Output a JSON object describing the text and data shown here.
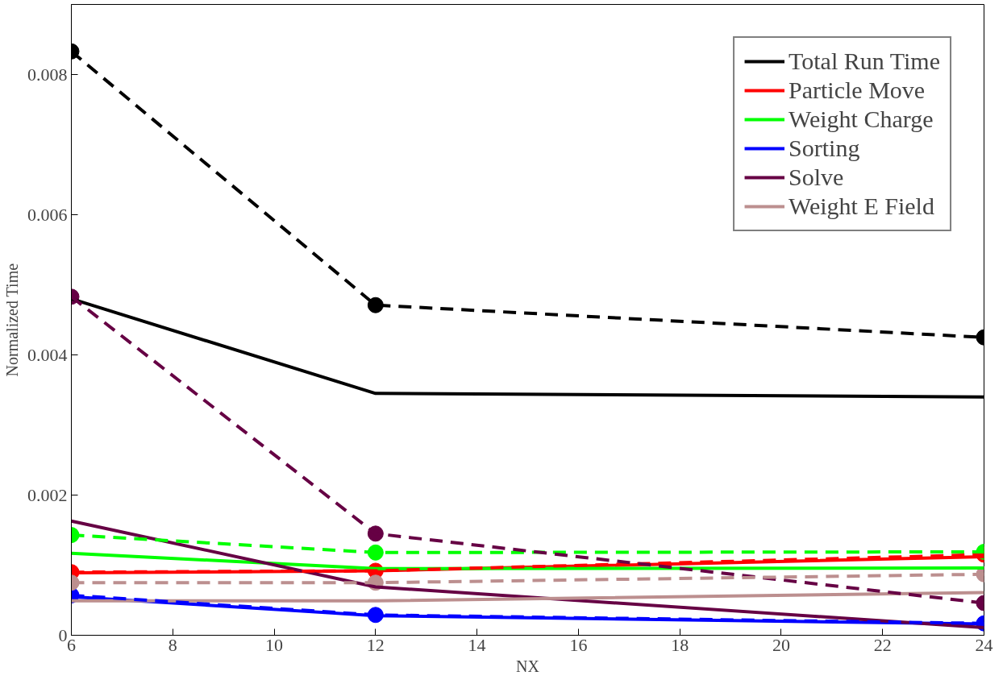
{
  "chart_data": {
    "type": "line",
    "xlabel": "NX",
    "ylabel": "Normalized Time",
    "x": [
      6,
      12,
      24
    ],
    "xlim": [
      6,
      24
    ],
    "xticks": [
      6,
      8,
      10,
      12,
      14,
      16,
      18,
      20,
      22,
      24
    ],
    "ylim": [
      0,
      0.009
    ],
    "yticks": [
      0,
      0.002,
      0.004,
      0.006,
      0.008
    ],
    "grid": false,
    "legend": "top right",
    "series": [
      {
        "name": "Total Run Time",
        "color": "#000000",
        "values": [
          0.0048,
          0.00345,
          0.0034
        ],
        "line_style": "solid",
        "marker": "none"
      },
      {
        "name": "Particle Move",
        "color": "#ff0000",
        "values": [
          0.00089,
          0.00092,
          0.00112
        ],
        "line_style": "solid",
        "marker": "none"
      },
      {
        "name": "Weight Charge",
        "color": "#00ff00",
        "values": [
          0.00117,
          0.00095,
          0.00096
        ],
        "line_style": "solid",
        "marker": "none"
      },
      {
        "name": "Sorting",
        "color": "#0000ff",
        "values": [
          0.00055,
          0.00028,
          0.00016
        ],
        "line_style": "solid",
        "marker": "none"
      },
      {
        "name": "Solve",
        "color": "#660044",
        "values": [
          0.00163,
          0.00069,
          0.00011
        ],
        "line_style": "solid",
        "marker": "none"
      },
      {
        "name": "Weight E Field",
        "color": "#bc8f8f",
        "values": [
          0.00049,
          0.00049,
          0.00061
        ],
        "line_style": "solid",
        "marker": "none"
      },
      {
        "color": "#000000",
        "values": [
          0.00833,
          0.00471,
          0.00425
        ],
        "line_style": "dashed",
        "marker": "circle"
      },
      {
        "color": "#ff0000",
        "values": [
          0.0009,
          0.00092,
          0.00115
        ],
        "line_style": "dashed",
        "marker": "circle"
      },
      {
        "color": "#00ff00",
        "values": [
          0.00143,
          0.00118,
          0.00119
        ],
        "line_style": "dashed",
        "marker": "circle"
      },
      {
        "color": "#0000ff",
        "values": [
          0.00057,
          0.00029,
          0.00017
        ],
        "line_style": "dashed",
        "marker": "circle"
      },
      {
        "color": "#660044",
        "values": [
          0.00483,
          0.00145,
          0.00046
        ],
        "line_style": "dashed",
        "marker": "circle"
      },
      {
        "color": "#bc8f8f",
        "values": [
          0.00075,
          0.00075,
          0.00087
        ],
        "line_style": "dashed",
        "marker": "circle"
      }
    ]
  }
}
